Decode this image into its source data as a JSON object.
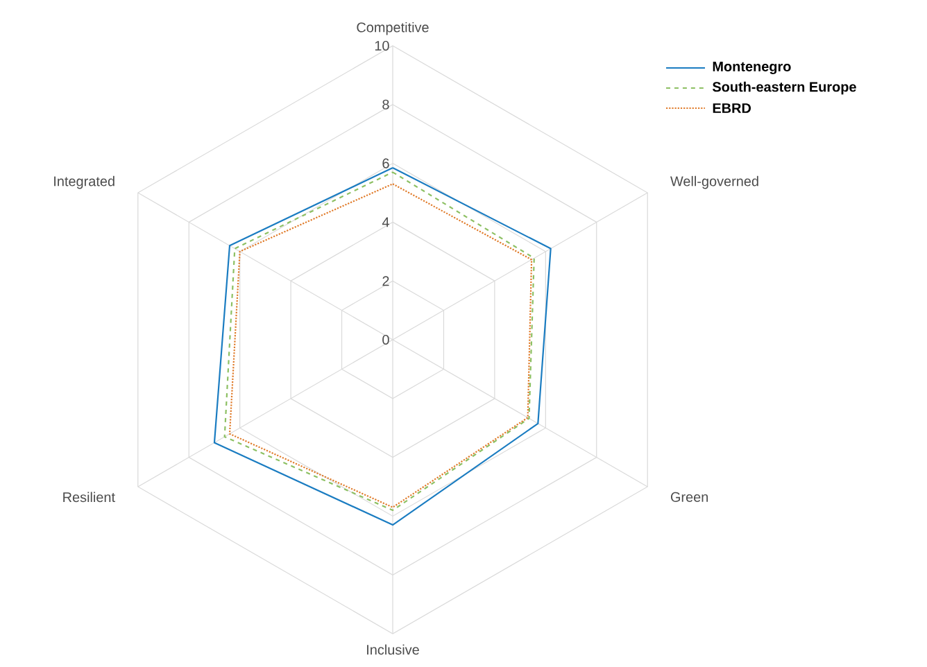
{
  "chart_data": {
    "type": "radar",
    "categories": [
      "Competitive",
      "Well-governed",
      "Green",
      "Inclusive",
      "Resilient",
      "Integrated"
    ],
    "series": [
      {
        "name": "Montenegro",
        "color": "#1a7cc1",
        "line_style": "solid",
        "values": [
          5.85,
          6.2,
          5.7,
          6.3,
          7.0,
          6.4
        ]
      },
      {
        "name": "South-eastern Europe",
        "color": "#8dc063",
        "line_style": "dashed",
        "values": [
          5.7,
          5.55,
          5.35,
          5.8,
          6.6,
          6.2
        ]
      },
      {
        "name": "EBRD",
        "color": "#e07b2a",
        "line_style": "dotted",
        "values": [
          5.3,
          5.45,
          5.3,
          5.7,
          6.4,
          6.0
        ]
      }
    ],
    "ylim": [
      0,
      10
    ],
    "yticks": [
      0,
      2,
      4,
      6,
      8,
      10
    ],
    "grid": true,
    "legend": "top right"
  }
}
